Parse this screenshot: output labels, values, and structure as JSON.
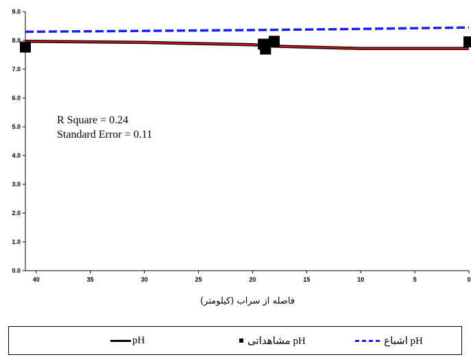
{
  "chart_data": {
    "type": "line",
    "xlabel": "فاصله از سراب (کیلومتر)",
    "ylabel": "",
    "xlim": [
      41,
      0
    ],
    "ylim": [
      0,
      9
    ],
    "x_ticks": [
      "40",
      "35",
      "30",
      "25",
      "20",
      "15",
      "10",
      "5",
      "0"
    ],
    "y_ticks": [
      "0.0",
      "1.0",
      "2.0",
      "3.0",
      "4.0",
      "5.0",
      "6.0",
      "7.0",
      "8.0",
      "9.0"
    ],
    "grid": false,
    "legend_position": "bottom",
    "annotations": [
      "R Square = 0.24",
      "Standard Error = 0.11"
    ],
    "series": [
      {
        "name": "pH",
        "style": "solid",
        "color": "#000000",
        "x": [
          41,
          30,
          20,
          18,
          10,
          0
        ],
        "y": [
          7.97,
          7.93,
          7.85,
          7.8,
          7.72,
          7.72
        ]
      },
      {
        "name": "pH مشاهداتی",
        "style": "markers",
        "color": "#000000",
        "x": [
          41,
          19,
          18.8,
          18,
          0
        ],
        "y": [
          7.77,
          7.87,
          7.7,
          7.97,
          7.95
        ]
      },
      {
        "name": "pH اشباع",
        "style": "dashed",
        "color": "#1a1aff",
        "x": [
          41,
          30,
          20,
          10,
          0
        ],
        "y": [
          8.3,
          8.33,
          8.36,
          8.4,
          8.45
        ]
      },
      {
        "name": "",
        "style": "solid",
        "color": "#e01818",
        "x": [
          41,
          30,
          20,
          18,
          10,
          0
        ],
        "y": [
          7.97,
          7.93,
          7.85,
          7.8,
          7.72,
          7.72
        ]
      }
    ]
  },
  "legend": {
    "solid_label": "pH",
    "observed_label": "pH مشاهداتی",
    "saturation_label": "pH اشباع"
  }
}
